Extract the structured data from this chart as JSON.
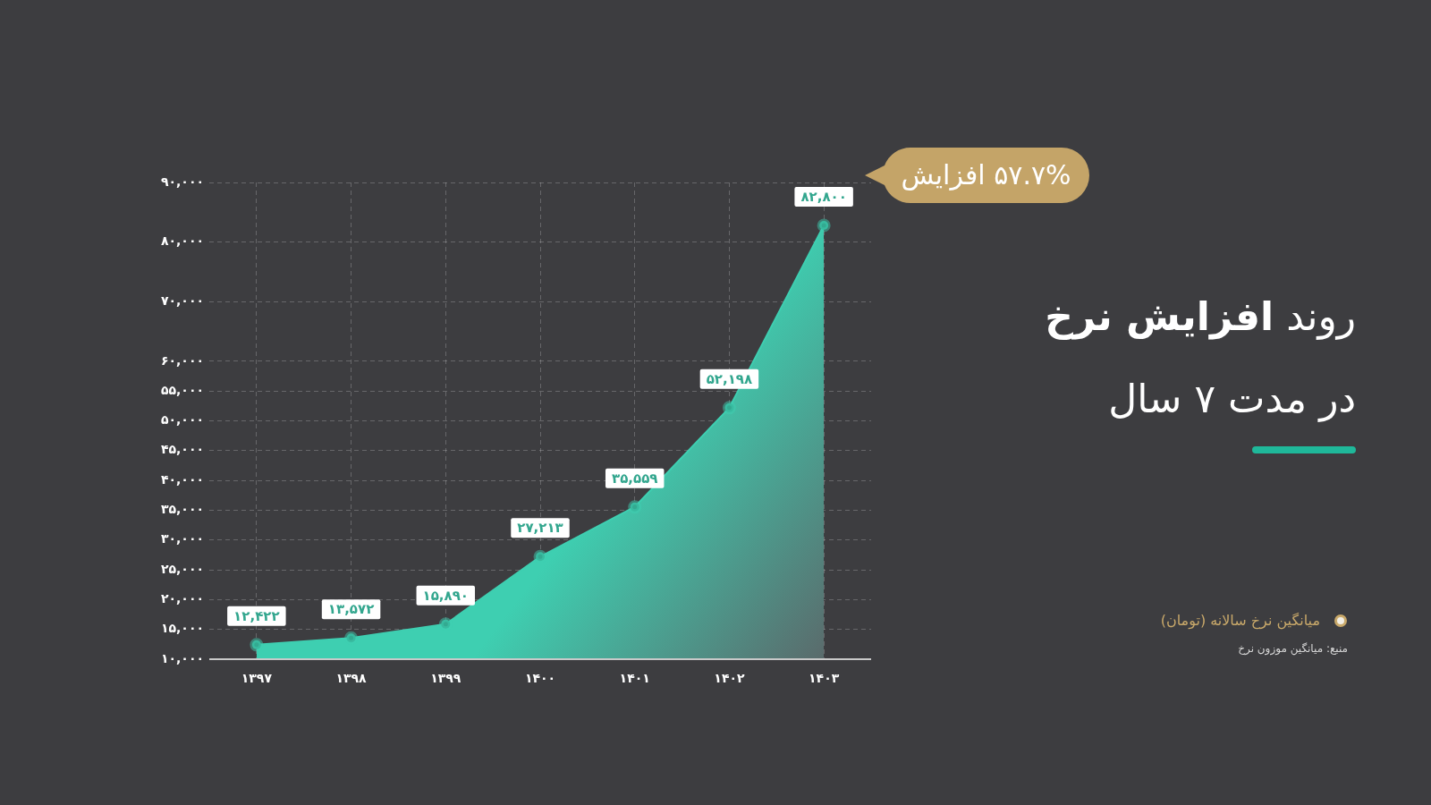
{
  "chart_data": {
    "type": "area",
    "title": "روند افزایش نرخ",
    "subtitle": "در مدت ۷ سال",
    "categories": [
      "۱۳۹۷",
      "۱۳۹۸",
      "۱۳۹۹",
      "۱۴۰۰",
      "۱۴۰۱",
      "۱۴۰۲",
      "۱۴۰۳"
    ],
    "series": [
      {
        "name": "میانگین نرخ سالانه (تومان)",
        "color": "#3ecfb1",
        "values": [
          12422,
          13572,
          15890,
          27213,
          35559,
          52198,
          82800
        ],
        "value_labels": [
          "۱۲,۴۲۲",
          "۱۳,۵۷۲",
          "۱۵,۸۹۰",
          "۲۷,۲۱۳",
          "۳۵,۵۵۹",
          "۵۲,۱۹۸",
          "۸۲,۸۰۰"
        ]
      }
    ],
    "ylim": [
      10000,
      90000
    ],
    "yticks": [
      {
        "value": 10000,
        "label": "۱۰,۰۰۰"
      },
      {
        "value": 15000,
        "label": "۱۵,۰۰۰"
      },
      {
        "value": 20000,
        "label": "۲۰,۰۰۰"
      },
      {
        "value": 25000,
        "label": "۲۵,۰۰۰"
      },
      {
        "value": 30000,
        "label": "۳۰,۰۰۰"
      },
      {
        "value": 35000,
        "label": "۳۵,۰۰۰"
      },
      {
        "value": 40000,
        "label": "۴۰,۰۰۰"
      },
      {
        "value": 45000,
        "label": "۴۵,۰۰۰"
      },
      {
        "value": 50000,
        "label": "۵۰,۰۰۰"
      },
      {
        "value": 55000,
        "label": "۵۵,۰۰۰"
      },
      {
        "value": 60000,
        "label": "۶۰,۰۰۰"
      },
      {
        "value": 70000,
        "label": "۷۰,۰۰۰"
      },
      {
        "value": 80000,
        "label": "۸۰,۰۰۰"
      },
      {
        "value": 90000,
        "label": "۹۰,۰۰۰"
      }
    ],
    "annotations": [
      "۵۷.۷% افزایش",
      "منبع: میانگین موزون نرخ"
    ],
    "grid": true,
    "legend": "right",
    "marker": "circle"
  }
}
